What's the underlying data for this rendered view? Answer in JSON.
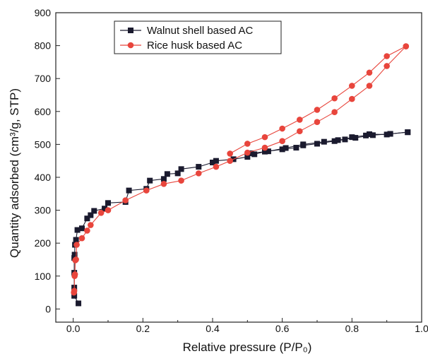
{
  "chart_data": {
    "type": "scatter",
    "title": "",
    "xlabel": "Relative pressure (P/P₀)",
    "ylabel": "Quantity adsorbed (cm³/g, STP)",
    "xlim": [
      -0.05,
      1.0
    ],
    "ylim": [
      -40,
      900
    ],
    "xticks": [
      0.0,
      0.2,
      0.4,
      0.6,
      0.8,
      1.0
    ],
    "xtick_labels": [
      "0.0",
      "0.2",
      "0.4",
      "0.6",
      "0.8",
      "1.0"
    ],
    "yticks": [
      0,
      100,
      200,
      300,
      400,
      500,
      600,
      700,
      800,
      900
    ],
    "ytick_labels": [
      "0",
      "100",
      "200",
      "300",
      "400",
      "500",
      "600",
      "700",
      "800",
      "900"
    ],
    "grid": false,
    "legend_position": "top-center",
    "series": [
      {
        "name": "Walnut shell based AC",
        "color": "#1a1a2e",
        "marker": "square",
        "adsorption": {
          "x": [
            0.015,
            0.003,
            0.003,
            0.003,
            0.003,
            0.004,
            0.005,
            0.008,
            0.012,
            0.025,
            0.04,
            0.05,
            0.06,
            0.09,
            0.1,
            0.15,
            0.16,
            0.21,
            0.22,
            0.26,
            0.27,
            0.3,
            0.31,
            0.36,
            0.4,
            0.41,
            0.46,
            0.5,
            0.52,
            0.55,
            0.6,
            0.64,
            0.66,
            0.7,
            0.75,
            0.78,
            0.8,
            0.84,
            0.85,
            0.9,
            0.91,
            0.96
          ],
          "y": [
            17,
            40,
            65,
            110,
            155,
            165,
            195,
            210,
            240,
            245,
            275,
            285,
            298,
            305,
            322,
            325,
            360,
            365,
            390,
            395,
            410,
            412,
            425,
            432,
            445,
            450,
            455,
            462,
            470,
            478,
            485,
            490,
            497,
            502,
            510,
            515,
            522,
            527,
            531,
            530,
            532,
            537
          ]
        },
        "desorption": {
          "x": [
            0.96,
            0.91,
            0.86,
            0.81,
            0.76,
            0.72,
            0.66,
            0.61,
            0.56,
            0.51
          ],
          "y": [
            537,
            532,
            528,
            520,
            513,
            508,
            500,
            489,
            479,
            473
          ]
        }
      },
      {
        "name": "Rice husk based AC",
        "color": "#e8453c",
        "marker": "circle",
        "adsorption": {
          "x": [
            0.002,
            0.003,
            0.004,
            0.005,
            0.006,
            0.008,
            0.01,
            0.025,
            0.04,
            0.05,
            0.08,
            0.1,
            0.15,
            0.21,
            0.26,
            0.31,
            0.36,
            0.41,
            0.45,
            0.5,
            0.55,
            0.6,
            0.65,
            0.7,
            0.75,
            0.8,
            0.85,
            0.9,
            0.955
          ],
          "y": [
            50,
            55,
            100,
            105,
            148,
            150,
            195,
            215,
            238,
            255,
            292,
            300,
            330,
            360,
            380,
            390,
            412,
            432,
            450,
            475,
            490,
            510,
            540,
            568,
            598,
            638,
            678,
            738,
            798
          ]
        },
        "desorption": {
          "x": [
            0.955,
            0.9,
            0.85,
            0.8,
            0.75,
            0.7,
            0.65,
            0.6,
            0.55,
            0.5,
            0.45
          ],
          "y": [
            798,
            768,
            718,
            678,
            640,
            605,
            575,
            548,
            522,
            502,
            472
          ]
        }
      }
    ]
  }
}
